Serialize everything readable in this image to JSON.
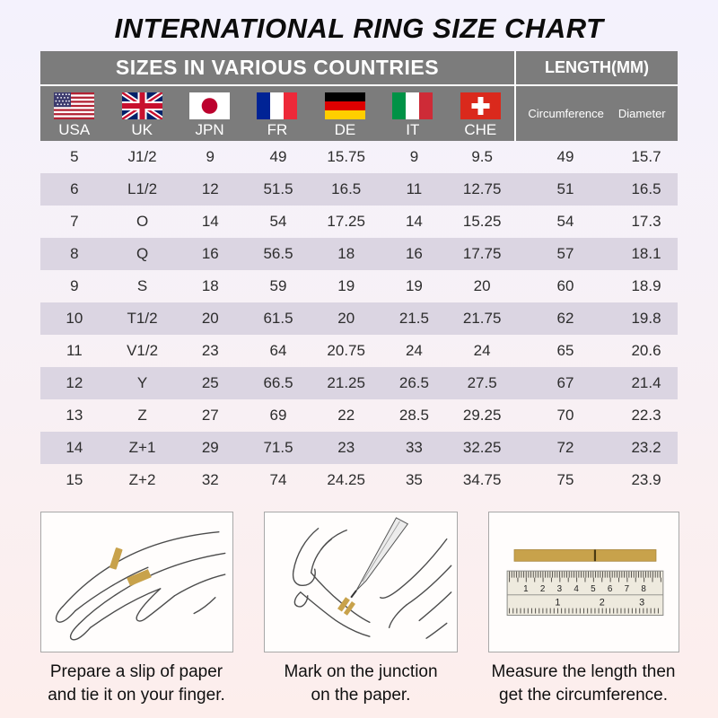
{
  "title": "INTERNATIONAL RING SIZE CHART",
  "chart_data": {
    "type": "table",
    "title": "INTERNATIONAL RING SIZE CHART",
    "column_groups": [
      {
        "label": "SIZES IN VARIOUS COUNTRIES",
        "span": 7
      },
      {
        "label": "LENGTH(MM)",
        "span": 2
      }
    ],
    "columns": [
      "USA",
      "UK",
      "JPN",
      "FR",
      "DE",
      "IT",
      "CHE",
      "Circumference",
      "Diameter"
    ],
    "rows": [
      [
        "5",
        "J1/2",
        "9",
        "49",
        "15.75",
        "9",
        "9.5",
        "49",
        "15.7"
      ],
      [
        "6",
        "L1/2",
        "12",
        "51.5",
        "16.5",
        "11",
        "12.75",
        "51",
        "16.5"
      ],
      [
        "7",
        "O",
        "14",
        "54",
        "17.25",
        "14",
        "15.25",
        "54",
        "17.3"
      ],
      [
        "8",
        "Q",
        "16",
        "56.5",
        "18",
        "16",
        "17.75",
        "57",
        "18.1"
      ],
      [
        "9",
        "S",
        "18",
        "59",
        "19",
        "19",
        "20",
        "60",
        "18.9"
      ],
      [
        "10",
        "T1/2",
        "20",
        "61.5",
        "20",
        "21.5",
        "21.75",
        "62",
        "19.8"
      ],
      [
        "11",
        "V1/2",
        "23",
        "64",
        "20.75",
        "24",
        "24",
        "65",
        "20.6"
      ],
      [
        "12",
        "Y",
        "25",
        "66.5",
        "21.25",
        "26.5",
        "27.5",
        "67",
        "21.4"
      ],
      [
        "13",
        "Z",
        "27",
        "69",
        "22",
        "28.5",
        "29.25",
        "70",
        "22.3"
      ],
      [
        "14",
        "Z+1",
        "29",
        "71.5",
        "23",
        "33",
        "32.25",
        "72",
        "23.2"
      ],
      [
        "15",
        "Z+2",
        "32",
        "74",
        "24.25",
        "35",
        "34.75",
        "75",
        "23.9"
      ]
    ]
  },
  "flags": [
    {
      "code": "USA",
      "icon": "usa-flag-icon"
    },
    {
      "code": "UK",
      "icon": "uk-flag-icon"
    },
    {
      "code": "JPN",
      "icon": "japan-flag-icon"
    },
    {
      "code": "FR",
      "icon": "france-flag-icon"
    },
    {
      "code": "DE",
      "icon": "germany-flag-icon"
    },
    {
      "code": "IT",
      "icon": "italy-flag-icon"
    },
    {
      "code": "CHE",
      "icon": "switzerland-flag-icon"
    }
  ],
  "figures": [
    {
      "caption_line1": "Prepare a slip of paper",
      "caption_line2": "and tie it on your finger."
    },
    {
      "caption_line1": "Mark on the junction",
      "caption_line2": "on the paper."
    },
    {
      "caption_line1": "Measure the length then",
      "caption_line2": "get the circumference.",
      "ruler": {
        "cm": [
          "1",
          "2",
          "3",
          "4",
          "5",
          "6",
          "7",
          "8"
        ],
        "inch": [
          "1",
          "2",
          "3"
        ]
      }
    }
  ],
  "colors": {
    "header_gray": "#7c7c7c",
    "row_shaded": "#dbd5e2",
    "background_top": "#f4f2fd",
    "background_bottom": "#fdeeec",
    "paper_gold": "#c8a24b",
    "text_dark": "#2d2d2d"
  }
}
